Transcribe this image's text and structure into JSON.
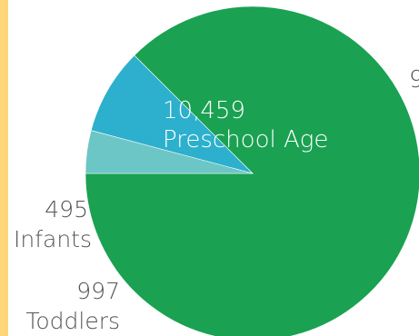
{
  "colors": {
    "accent_bar": "#ffd77a",
    "background": "#ffffff",
    "label_on_slice": "#ffffff",
    "label_outside": "#555555"
  },
  "chart_data": {
    "type": "pie",
    "slices": [
      {
        "name": "Preschool Age",
        "value": 10459,
        "value_label": "10,459",
        "color": "#1aa152"
      },
      {
        "name": "Toddlers",
        "value": 997,
        "value_label": "997",
        "color": "#2cb0cd"
      },
      {
        "name": "Infants",
        "value": 495,
        "value_label": "495",
        "color": "#6dc6c6"
      }
    ],
    "partial_label": "9"
  }
}
